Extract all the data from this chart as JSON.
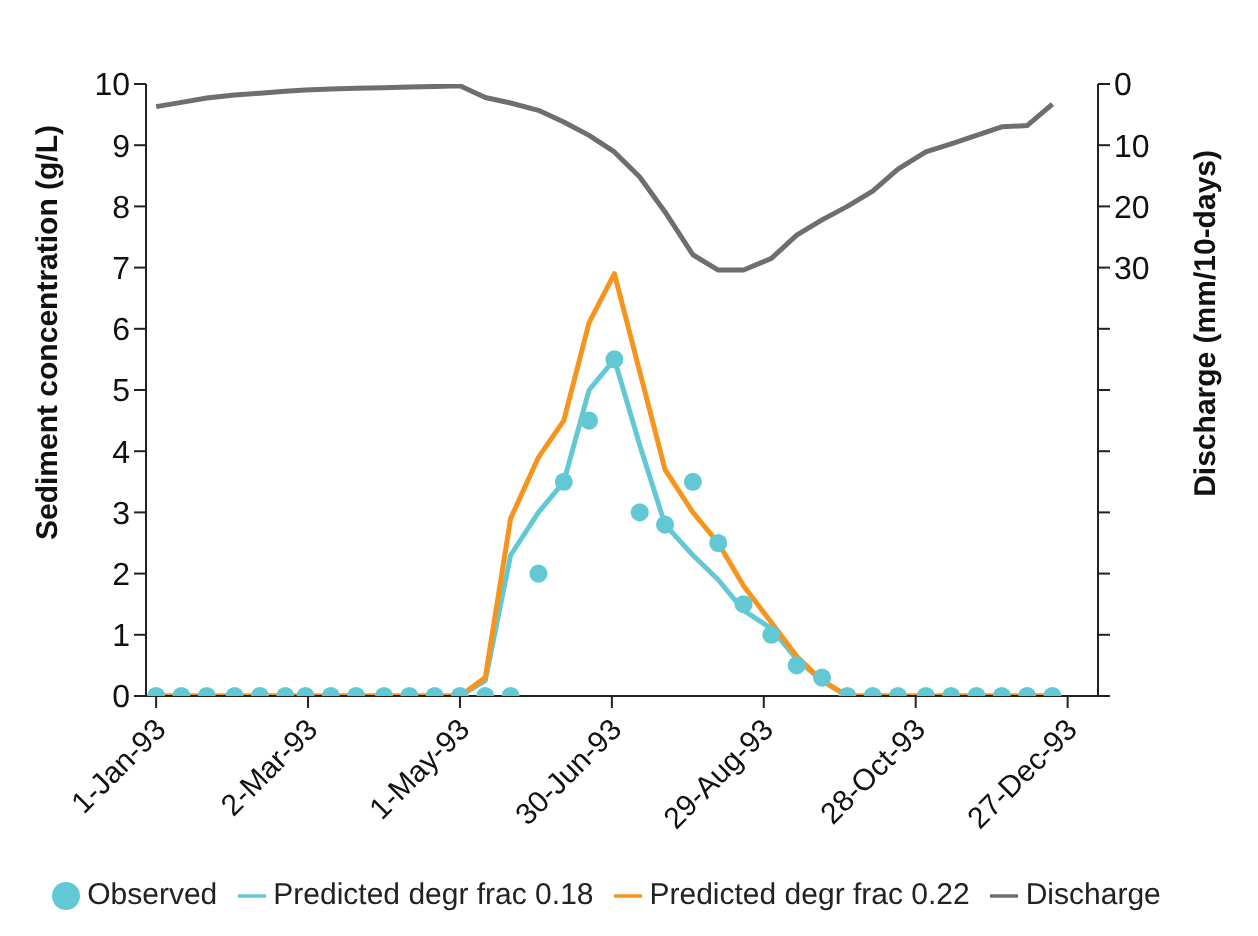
{
  "chart_data": {
    "type": "line",
    "xlabel": null,
    "ylabel": "Sediment concentration (g/L)",
    "y2label": "Discharge (mm/10-days)",
    "x": [
      "1993-01-01",
      "1993-01-11",
      "1993-01-21",
      "1993-02-01",
      "1993-02-11",
      "1993-02-21",
      "1993-03-01",
      "1993-03-11",
      "1993-03-21",
      "1993-04-01",
      "1993-04-11",
      "1993-04-21",
      "1993-05-01",
      "1993-05-11",
      "1993-05-21",
      "1993-06-01",
      "1993-06-11",
      "1993-06-21",
      "1993-07-01",
      "1993-07-11",
      "1993-07-21",
      "1993-08-01",
      "1993-08-11",
      "1993-08-21",
      "1993-09-01",
      "1993-09-11",
      "1993-09-21",
      "1993-10-01",
      "1993-10-11",
      "1993-10-21",
      "1993-11-01",
      "1993-11-11",
      "1993-11-21",
      "1993-12-01",
      "1993-12-11",
      "1993-12-21"
    ],
    "series": [
      {
        "name": "Observed",
        "type": "scatter",
        "marker": "circle",
        "color": "#62c9d4",
        "values": [
          0,
          0,
          0,
          0,
          0,
          0,
          0,
          0,
          0,
          0,
          0,
          0,
          0,
          0,
          0,
          2.0,
          3.5,
          4.5,
          5.5,
          3.0,
          2.8,
          3.5,
          2.5,
          1.5,
          1.0,
          0.5,
          0.3,
          0,
          0,
          0,
          0,
          0,
          0,
          0,
          0,
          0
        ]
      },
      {
        "name": "Predicted degr frac 0.18",
        "color": "#62c9d4",
        "values": [
          0,
          0,
          0,
          0,
          0,
          0,
          0,
          0,
          0,
          0,
          0,
          0,
          0,
          0.25,
          2.3,
          3.0,
          3.5,
          5.0,
          5.5,
          4.1,
          2.8,
          2.3,
          1.9,
          1.4,
          1.1,
          0.6,
          0.25,
          0,
          0,
          0,
          0,
          0,
          0,
          0,
          0,
          0
        ]
      },
      {
        "name": "Predicted degr frac 0.22",
        "color": "#f7941d",
        "values": [
          0,
          0,
          0,
          0,
          0,
          0,
          0,
          0,
          0,
          0,
          0,
          0,
          0,
          0.3,
          2.9,
          3.9,
          4.5,
          6.1,
          6.9,
          5.3,
          3.7,
          3.0,
          2.5,
          1.8,
          1.2,
          0.65,
          0.25,
          0,
          0,
          0,
          0,
          0,
          0,
          0,
          0,
          0
        ]
      },
      {
        "name": "Discharge",
        "axis": "y2",
        "color": "#6d6e70",
        "values": [
          3.7,
          3.0,
          2.3,
          1.8,
          1.5,
          1.2,
          1.0,
          0.8,
          0.7,
          0.6,
          0.5,
          0.4,
          0.3,
          2.2,
          3.1,
          4.3,
          6.2,
          8.4,
          11.1,
          15.2,
          20.9,
          27.9,
          30.4,
          30.4,
          28.5,
          24.7,
          22.2,
          20.0,
          17.5,
          13.9,
          11.1,
          9.8,
          8.4,
          7.0,
          6.8,
          3.3
        ]
      }
    ],
    "xlim": [
      "1992-12-28",
      "1994-01-08"
    ],
    "xticks": [
      {
        "value": "1993-01-01",
        "label": "1-Jan-93"
      },
      {
        "value": "1993-03-02",
        "label": "2-Mar-93"
      },
      {
        "value": "1993-05-01",
        "label": "1-May-93"
      },
      {
        "value": "1993-06-30",
        "label": "30-Jun-93"
      },
      {
        "value": "1993-08-29",
        "label": "29-Aug-93"
      },
      {
        "value": "1993-10-28",
        "label": "28-Oct-93"
      },
      {
        "value": "1993-12-27",
        "label": "27-Dec-93"
      }
    ],
    "ylim": [
      0,
      10
    ],
    "yticks": [
      0,
      1,
      2,
      3,
      4,
      5,
      6,
      7,
      8,
      9,
      10
    ],
    "y2lim": [
      100,
      0
    ],
    "y2ticks": [
      0,
      10,
      20,
      30,
      {
        "value": 40,
        "label": null
      },
      {
        "value": 50,
        "label": null
      },
      {
        "value": 60,
        "label": null
      },
      {
        "value": 70,
        "label": null
      },
      {
        "value": 80,
        "label": null
      },
      {
        "value": 90,
        "label": null
      },
      {
        "value": 100,
        "label": null
      }
    ],
    "grid": false,
    "legend": "bottom",
    "marker": "none",
    "line_style": "solid"
  }
}
